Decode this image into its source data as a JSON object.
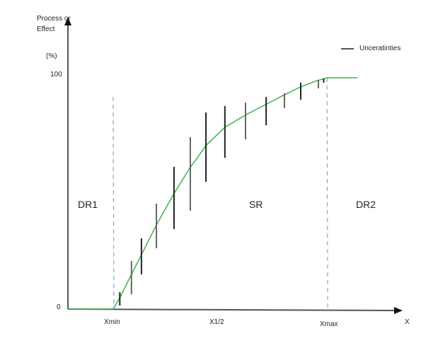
{
  "chart_data": {
    "type": "line",
    "title": "",
    "ylabel": "Process or Effect",
    "ylabel_line1": "Process or",
    "ylabel_line2": "Effect",
    "yunit": "(%)",
    "xlabel": "X",
    "xlim": [
      0,
      100
    ],
    "ylim": [
      0,
      100
    ],
    "y_ticks": [
      {
        "value": 100,
        "label": "100"
      },
      {
        "value": 0,
        "label": "0"
      }
    ],
    "x_markers": [
      {
        "label": "Xmin",
        "value": 13.6,
        "dashed_line": true
      },
      {
        "label": "X1/2",
        "value": 45,
        "dashed_line": false
      },
      {
        "label": "Xmax",
        "value": 77.9,
        "dashed_line": true
      }
    ],
    "regions": [
      {
        "label": "DR1",
        "x": 3
      },
      {
        "label": "SR",
        "x": 56
      },
      {
        "label": "DR2",
        "x": 87
      }
    ],
    "legend": {
      "placement": "top-right",
      "entries": [
        {
          "label": "Unceratinties",
          "color": "#555555"
        }
      ]
    },
    "grid": false,
    "series": [
      {
        "name": "curve",
        "color": "#3cb54a",
        "x": [
          0,
          13.6,
          15.7,
          18.9,
          22.1,
          26.4,
          31.7,
          36.6,
          41.7,
          47.2,
          53.6,
          59.8,
          64.7,
          69.4,
          74.3,
          77.9,
          87.0
        ],
        "y": [
          0,
          0,
          5.2,
          14.4,
          23.5,
          35.8,
          49.5,
          60.9,
          71.0,
          78.6,
          84.1,
          88.7,
          92.4,
          95.7,
          98.5,
          100,
          100
        ]
      }
    ],
    "uncertainties": [
      {
        "x": 15.6,
        "low": 1.5,
        "high": 7.3,
        "color": "#222222"
      },
      {
        "x": 19.1,
        "low": 6.4,
        "high": 20.8,
        "color": "#666666"
      },
      {
        "x": 22.1,
        "low": 15.0,
        "high": 30.6,
        "color": "#222222"
      },
      {
        "x": 26.6,
        "low": 26.3,
        "high": 45.6,
        "color": "#666666"
      },
      {
        "x": 31.9,
        "low": 34.6,
        "high": 61.5,
        "color": "#222222"
      },
      {
        "x": 36.8,
        "low": 42.5,
        "high": 74.3,
        "color": "#666666"
      },
      {
        "x": 41.5,
        "low": 55.0,
        "high": 85.0,
        "color": "#222222"
      },
      {
        "x": 47.2,
        "low": 65.4,
        "high": 87.8,
        "color": "#222222"
      },
      {
        "x": 53.4,
        "low": 73.4,
        "high": 89.3,
        "color": "#666666"
      },
      {
        "x": 59.6,
        "low": 79.5,
        "high": 91.7,
        "color": "#222222"
      },
      {
        "x": 65.1,
        "low": 86.9,
        "high": 93.3,
        "color": "#666666"
      },
      {
        "x": 70.0,
        "low": 90.5,
        "high": 97.9,
        "color": "#222222"
      },
      {
        "x": 75.3,
        "low": 95.4,
        "high": 99.1,
        "color": "#666666"
      },
      {
        "x": 76.9,
        "low": 97.9,
        "high": 99.7,
        "color": "#222222"
      }
    ]
  }
}
